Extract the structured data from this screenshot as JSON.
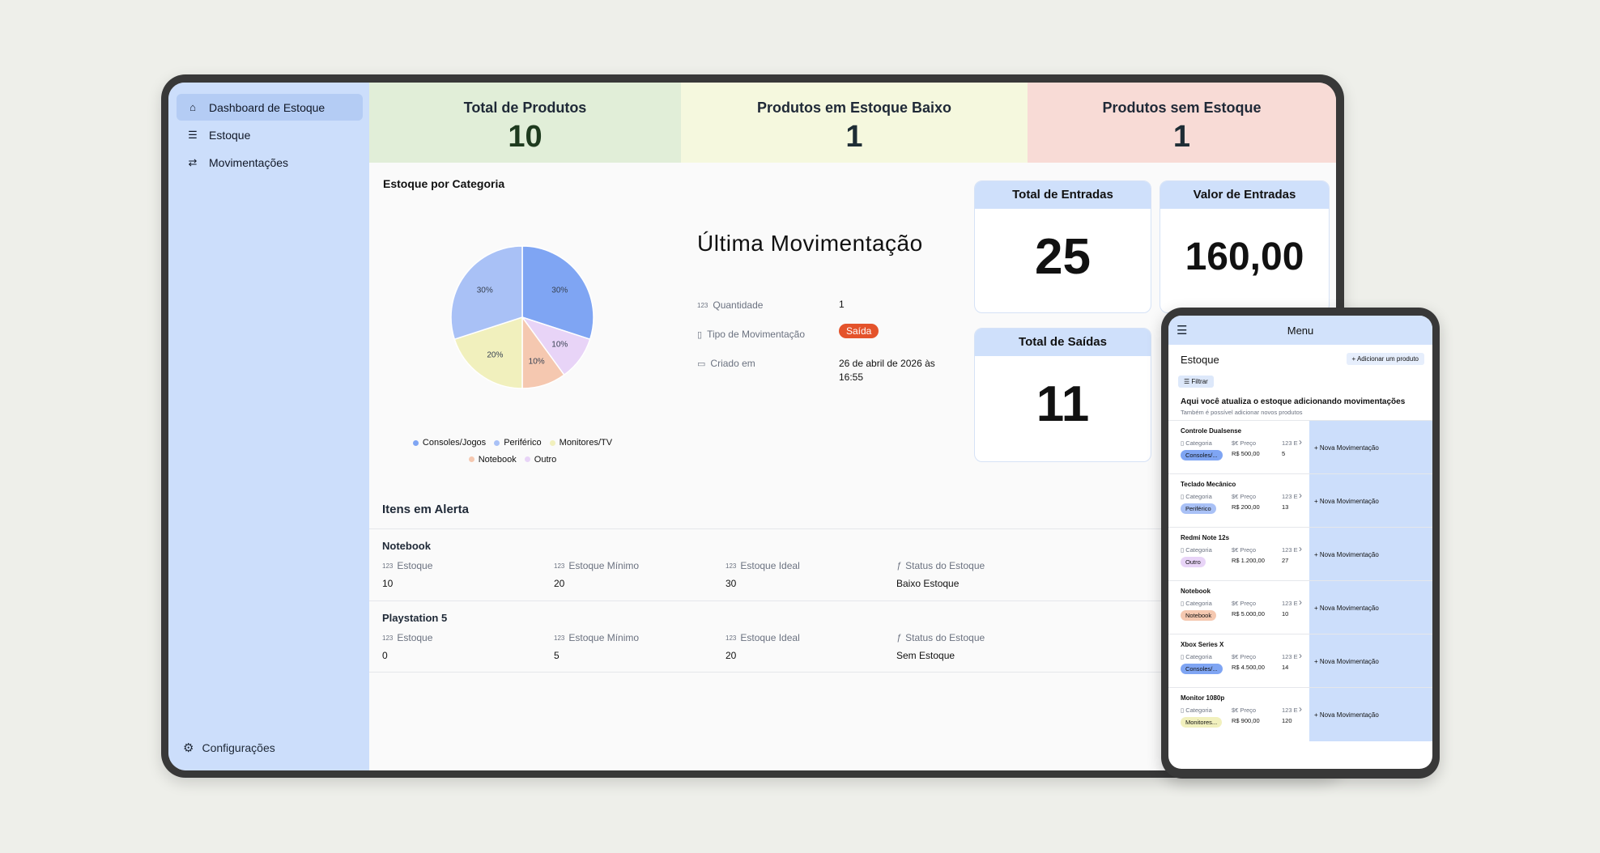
{
  "sidebar": {
    "items": [
      {
        "label": "Dashboard de Estoque",
        "icon": "home-icon"
      },
      {
        "label": "Estoque",
        "icon": "list-icon"
      },
      {
        "label": "Movimentações",
        "icon": "swap-icon"
      }
    ],
    "footer": {
      "label": "Configurações",
      "icon": "gear-icon"
    }
  },
  "kpis": [
    {
      "title": "Total de Produtos",
      "value": "10",
      "bg": "#e1eed8",
      "color": "#1e3a1e"
    },
    {
      "title": "Produtos em Estoque Baixo",
      "value": "1",
      "bg": "#f5f8de",
      "color": "#1e2d35"
    },
    {
      "title": "Produtos sem Estoque",
      "value": "1",
      "bg": "#f8dbd6",
      "color": "#1e2d35"
    }
  ],
  "categoria": {
    "title": "Estoque por Categoria"
  },
  "chart_data": {
    "type": "pie",
    "title": "Estoque por Categoria",
    "categories": [
      "Consoles/Jogos",
      "Periférico",
      "Monitores/TV",
      "Notebook",
      "Outro"
    ],
    "values": [
      30,
      30,
      20,
      10,
      10
    ],
    "labels": [
      "30%",
      "30%",
      "20%",
      "10%",
      "10%"
    ],
    "colors": [
      "#7fa5f3",
      "#a9c1f6",
      "#f1f0bd",
      "#f5c8b0",
      "#e8d4f7"
    ],
    "legend_position": "bottom"
  },
  "ultima": {
    "title": "Última Movimentação",
    "quantidade_label": "Quantidade",
    "quantidade_value": "1",
    "tipo_label": "Tipo de Movimentação",
    "tipo_value": "Saída",
    "criado_label": "Criado em",
    "criado_value_1": "26 de abril de 2026 às",
    "criado_value_2": "16:55"
  },
  "cards": {
    "entradas": {
      "title": "Total de Entradas",
      "value": "25"
    },
    "valor": {
      "title": "Valor de Entradas",
      "value": "160,00"
    },
    "saidas": {
      "title": "Total de Saídas",
      "value": "11"
    }
  },
  "alertas": {
    "title": "Itens em Alerta",
    "columns": [
      "Estoque",
      "Estoque Mínimo",
      "Estoque Ideal",
      "Status do Estoque"
    ],
    "rows": [
      {
        "name": "Notebook",
        "values": [
          "10",
          "20",
          "30",
          "Baixo Estoque"
        ]
      },
      {
        "name": "Playstation 5",
        "values": [
          "0",
          "5",
          "20",
          "Sem Estoque"
        ]
      }
    ]
  },
  "phone": {
    "menu_title": "Menu",
    "page_title": "Estoque",
    "add_button": "+ Adicionar um produto",
    "filter_button": "☰ Filtrar",
    "info_title": "Aqui você atualiza o estoque adicionando movimentações",
    "info_sub": "Também é possível adicionar novos produtos",
    "col_categoria": "Categoria",
    "col_preco": "Preço",
    "col_e": "E",
    "nova_label": "+ Nova Movimentação",
    "products": [
      {
        "name": "Controle Dualsense",
        "categoria": "Consoles/...",
        "chip_color": "#7fa5f3",
        "preco": "R$ 500,00",
        "estoque": "5"
      },
      {
        "name": "Teclado Mecânico",
        "categoria": "Periférico",
        "chip_color": "#a9c1f6",
        "preco": "R$ 200,00",
        "estoque": "13"
      },
      {
        "name": "Redmi Note 12s",
        "categoria": "Outro",
        "chip_color": "#e8d4f7",
        "preco": "R$ 1.200,00",
        "estoque": "27"
      },
      {
        "name": "Notebook",
        "categoria": "Notebook",
        "chip_color": "#f5c8b0",
        "preco": "R$ 5.000,00",
        "estoque": "10"
      },
      {
        "name": "Xbox Series X",
        "categoria": "Consoles/...",
        "chip_color": "#7fa5f3",
        "preco": "R$ 4.500,00",
        "estoque": "14"
      },
      {
        "name": "Monitor 1080p",
        "categoria": "Monitores...",
        "chip_color": "#f1f0bd",
        "preco": "R$ 900,00",
        "estoque": "120"
      }
    ]
  }
}
